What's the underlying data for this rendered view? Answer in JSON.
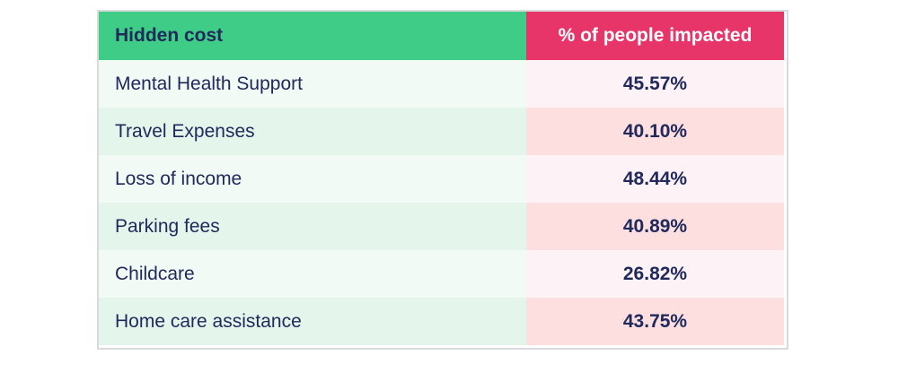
{
  "chart_data": {
    "type": "table",
    "title": "",
    "columns": [
      "Hidden cost",
      "% of people impacted"
    ],
    "categories": [
      "Mental Health Support",
      "Travel Expenses",
      "Loss of income",
      "Parking fees",
      "Childcare",
      "Home care assistance"
    ],
    "values": [
      45.57,
      40.1,
      48.44,
      40.89,
      26.82,
      43.75
    ],
    "value_labels": [
      "45.57%",
      "40.10%",
      "48.44%",
      "40.89%",
      "26.82%",
      "43.75%"
    ],
    "layout": {
      "header_row": true,
      "alternating_row_shading": true,
      "value_column_alignment": "center",
      "label_column_alignment": "left"
    }
  },
  "table": {
    "header": {
      "label_col": "Hidden cost",
      "value_col": "% of people impacted"
    },
    "rows": [
      {
        "label": "Mental Health Support",
        "value": "45.57%"
      },
      {
        "label": "Travel Expenses",
        "value": "40.10%"
      },
      {
        "label": "Loss of income",
        "value": "48.44%"
      },
      {
        "label": "Parking fees",
        "value": "40.89%"
      },
      {
        "label": "Childcare",
        "value": "26.82%"
      },
      {
        "label": "Home care assistance",
        "value": "43.75%"
      }
    ]
  },
  "colors": {
    "header_green_bg": "#3ecc87",
    "header_pink_bg": "#e73569",
    "header_pink_text": "#ffffff",
    "body_text_navy": "#20295c",
    "row_light_green": "#f1faf5",
    "row_light_pink": "#fdf2f5",
    "row_dark_green": "#e4f6ec",
    "row_dark_pink": "#fcdfde",
    "card_border": "#dadada",
    "page_bg": "#ffffff"
  }
}
